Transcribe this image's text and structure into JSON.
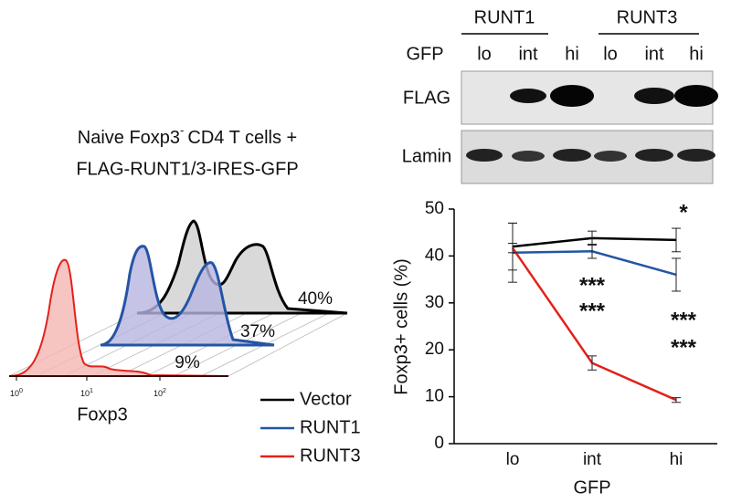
{
  "flow": {
    "title_main": "Naive Foxp3",
    "title_sup": "-",
    "title_rest": "CD4 T cells +",
    "title_line2": "FLAG-RUNT1/3-IRES-GFP",
    "percentages": [
      "40%",
      "37%",
      "9%"
    ],
    "xticks": [
      {
        "base": "10",
        "exp": "0"
      },
      {
        "base": "10",
        "exp": "1"
      },
      {
        "base": "10",
        "exp": "2"
      }
    ],
    "xlabel": "Foxp3"
  },
  "blot": {
    "groups": [
      "RUNT1",
      "RUNT3"
    ],
    "row_label": "GFP",
    "lanes": [
      "lo",
      "int",
      "hi",
      "lo",
      "int",
      "hi"
    ],
    "panels": [
      "FLAG",
      "Lamin"
    ]
  },
  "chart_data": {
    "type": "line",
    "categories": [
      "lo",
      "int",
      "hi"
    ],
    "xlabel": "GFP",
    "ylabel": "Foxp3+ cells (%)",
    "ylim": [
      0,
      50
    ],
    "yticks": [
      0,
      10,
      20,
      30,
      40,
      50
    ],
    "series": [
      {
        "name": "Vector",
        "color": "#000000",
        "values": [
          42,
          43.8,
          43.4
        ],
        "errors": [
          5,
          1.5,
          2.5
        ]
      },
      {
        "name": "RUNT1",
        "color": "#2455a4",
        "values": [
          40.7,
          41,
          36
        ],
        "errors": [
          6.3,
          1.5,
          3.5
        ]
      },
      {
        "name": "RUNT3",
        "color": "#e3211c",
        "values": [
          41.7,
          17.2,
          9.3
        ],
        "errors": [
          1,
          1.5,
          0.5
        ]
      }
    ],
    "annotations": [
      {
        "text": "*",
        "color": "#1a7bc4"
      },
      {
        "text": "***",
        "color": "#000000"
      },
      {
        "text": "***",
        "color": "#e3211c"
      },
      {
        "text": "***",
        "color": "#000000"
      },
      {
        "text": "***",
        "color": "#e3211c"
      }
    ]
  }
}
